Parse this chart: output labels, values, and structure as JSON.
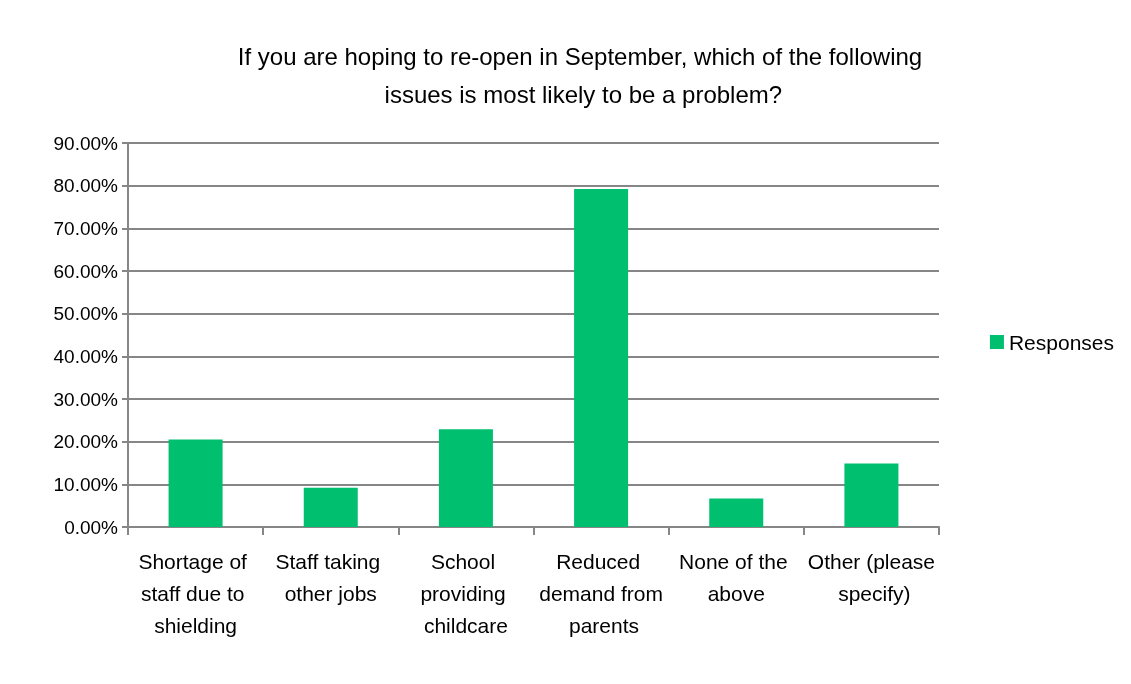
{
  "chart_data": {
    "type": "bar",
    "title": "If you are hoping to re-open in September, which of the following issues is most likely to be a problem?",
    "categories": [
      "Shortage of staff due to shielding",
      "Staff taking other jobs",
      "School providing childcare",
      "Reduced demand from parents",
      "None of the above",
      "Other (please specify)"
    ],
    "series": [
      {
        "name": "Responses",
        "color": "#00bf6f",
        "values": [
          20.5,
          9.2,
          22.9,
          79.2,
          6.7,
          14.9
        ]
      }
    ],
    "ylim": [
      0,
      90
    ],
    "yticks": [
      {
        "value": 0,
        "label": "0.00%"
      },
      {
        "value": 10,
        "label": "10.00%"
      },
      {
        "value": 20,
        "label": "20.00%"
      },
      {
        "value": 30,
        "label": "30.00%"
      },
      {
        "value": 40,
        "label": "40.00%"
      },
      {
        "value": 50,
        "label": "50.00%"
      },
      {
        "value": 60,
        "label": "60.00%"
      },
      {
        "value": 70,
        "label": "70.00%"
      },
      {
        "value": 80,
        "label": "80.00%"
      },
      {
        "value": 90,
        "label": "90.00%"
      }
    ],
    "grid": "y",
    "legend": "right"
  }
}
